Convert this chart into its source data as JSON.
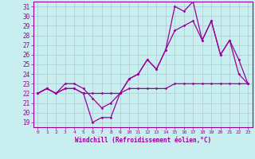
{
  "xlabel": "Windchill (Refroidissement éolien,°C)",
  "background_color": "#c8eef0",
  "grid_color": "#b0c8d0",
  "line_color": "#990099",
  "xlim": [
    -0.5,
    23.5
  ],
  "ylim": [
    18.5,
    31.5
  ],
  "yticks": [
    19,
    20,
    21,
    22,
    23,
    24,
    25,
    26,
    27,
    28,
    29,
    30,
    31
  ],
  "xticks": [
    0,
    1,
    2,
    3,
    4,
    5,
    6,
    7,
    8,
    9,
    10,
    11,
    12,
    13,
    14,
    15,
    16,
    17,
    18,
    19,
    20,
    21,
    22,
    23
  ],
  "line1_x": [
    0,
    1,
    2,
    3,
    4,
    5,
    6,
    7,
    8,
    9,
    10,
    11,
    12,
    13,
    14,
    15,
    16,
    17,
    18,
    19,
    20,
    21,
    22,
    23
  ],
  "line1_y": [
    22.0,
    22.5,
    22.0,
    22.5,
    22.5,
    22.0,
    22.0,
    22.0,
    22.0,
    22.0,
    22.5,
    22.5,
    22.5,
    22.5,
    22.5,
    23.0,
    23.0,
    23.0,
    23.0,
    23.0,
    23.0,
    23.0,
    23.0,
    23.0
  ],
  "line2_x": [
    0,
    1,
    2,
    3,
    4,
    5,
    6,
    7,
    8,
    9,
    10,
    11,
    12,
    13,
    14,
    15,
    16,
    17,
    18,
    19,
    20,
    21,
    22,
    23
  ],
  "line2_y": [
    22.0,
    22.5,
    22.0,
    22.5,
    22.5,
    22.0,
    19.0,
    19.5,
    19.5,
    22.0,
    23.5,
    24.0,
    25.5,
    24.5,
    26.5,
    31.0,
    30.5,
    31.5,
    27.5,
    29.5,
    26.0,
    27.5,
    24.0,
    23.0
  ],
  "line3_x": [
    0,
    1,
    2,
    3,
    4,
    5,
    6,
    7,
    8,
    9,
    10,
    11,
    12,
    13,
    14,
    15,
    16,
    17,
    18,
    19,
    20,
    21,
    22,
    23
  ],
  "line3_y": [
    22.0,
    22.5,
    22.0,
    23.0,
    23.0,
    22.5,
    21.5,
    20.5,
    21.0,
    22.0,
    23.5,
    24.0,
    25.5,
    24.5,
    26.5,
    28.5,
    29.0,
    29.5,
    27.5,
    29.5,
    26.0,
    27.5,
    25.5,
    23.0
  ]
}
